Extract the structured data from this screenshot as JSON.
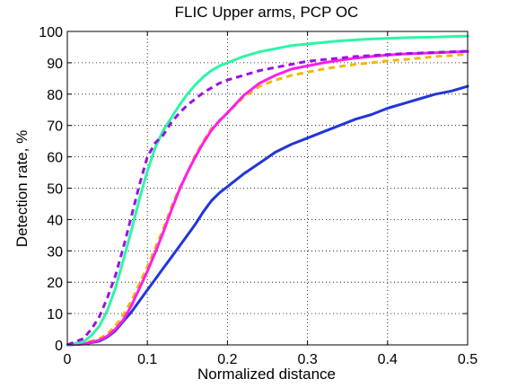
{
  "chart_data": {
    "type": "line",
    "title": "FLIC Upper arms, PCP OC",
    "xlabel": "Normalized distance",
    "ylabel": "Detection rate, %",
    "xlim": [
      0,
      0.5
    ],
    "ylim": [
      0,
      100
    ],
    "xticks": [
      "0",
      "0.1",
      "0.2",
      "0.3",
      "0.4",
      "0.5"
    ],
    "yticks": [
      "0",
      "10",
      "20",
      "30",
      "40",
      "50",
      "60",
      "70",
      "80",
      "90",
      "100"
    ],
    "grid": true,
    "series": [
      {
        "color": "#2236d8",
        "dash": "solid",
        "x": [
          0,
          0.02,
          0.04,
          0.05,
          0.06,
          0.07,
          0.08,
          0.09,
          0.1,
          0.11,
          0.12,
          0.13,
          0.14,
          0.15,
          0.16,
          0.17,
          0.18,
          0.19,
          0.2,
          0.22,
          0.24,
          0.26,
          0.28,
          0.3,
          0.32,
          0.34,
          0.36,
          0.38,
          0.4,
          0.42,
          0.44,
          0.46,
          0.48,
          0.5
        ],
        "y": [
          0,
          0.3,
          1.2,
          2.5,
          4.5,
          7.5,
          10.5,
          14,
          17.5,
          21,
          24.5,
          28,
          31.5,
          35,
          38.5,
          42.5,
          46,
          48.5,
          50.5,
          54.5,
          58,
          61.5,
          64,
          66,
          68,
          70,
          72,
          73.5,
          75.5,
          77,
          78.5,
          80,
          81,
          82.5
        ]
      },
      {
        "color": "#f2b800",
        "dash": "dashed",
        "x": [
          0,
          0.02,
          0.04,
          0.05,
          0.06,
          0.07,
          0.08,
          0.09,
          0.1,
          0.11,
          0.12,
          0.13,
          0.14,
          0.15,
          0.16,
          0.17,
          0.18,
          0.19,
          0.2,
          0.22,
          0.24,
          0.26,
          0.28,
          0.3,
          0.32,
          0.34,
          0.36,
          0.38,
          0.4,
          0.42,
          0.44,
          0.46,
          0.48,
          0.5
        ],
        "y": [
          0,
          0.5,
          2,
          3.5,
          6,
          9.5,
          14,
          19.5,
          25,
          31,
          37,
          44,
          50,
          55,
          60.5,
          65,
          69,
          71.5,
          74,
          79,
          82.5,
          84.5,
          86,
          87,
          88,
          88.8,
          89.5,
          90,
          90.6,
          91,
          91.5,
          92,
          92.3,
          92.8
        ]
      },
      {
        "color": "#ff1ee8",
        "dash": "solid",
        "x": [
          0,
          0.02,
          0.04,
          0.05,
          0.06,
          0.07,
          0.08,
          0.09,
          0.1,
          0.11,
          0.12,
          0.13,
          0.14,
          0.15,
          0.16,
          0.17,
          0.18,
          0.19,
          0.2,
          0.22,
          0.24,
          0.26,
          0.28,
          0.3,
          0.32,
          0.34,
          0.36,
          0.38,
          0.4,
          0.42,
          0.44,
          0.46,
          0.48,
          0.5
        ],
        "y": [
          0,
          0.3,
          1.5,
          2.8,
          5,
          8,
          12.5,
          18,
          23.5,
          29.5,
          36,
          43,
          49.5,
          55,
          60,
          64.5,
          68.5,
          71.5,
          74,
          79.5,
          83.5,
          86,
          88,
          89,
          90,
          90.8,
          91.5,
          92,
          92.5,
          92.8,
          93,
          93.2,
          93.4,
          93.6
        ]
      },
      {
        "color": "#2ef5a6",
        "dash": "solid",
        "x": [
          0,
          0.02,
          0.03,
          0.04,
          0.05,
          0.06,
          0.07,
          0.08,
          0.09,
          0.1,
          0.11,
          0.12,
          0.13,
          0.14,
          0.15,
          0.16,
          0.17,
          0.18,
          0.19,
          0.2,
          0.22,
          0.24,
          0.26,
          0.28,
          0.3,
          0.32,
          0.34,
          0.36,
          0.38,
          0.4,
          0.42,
          0.44,
          0.46,
          0.48,
          0.5
        ],
        "y": [
          0,
          1,
          3,
          6,
          11,
          18,
          27,
          36.5,
          46.5,
          55.5,
          63,
          68.5,
          72.5,
          76.5,
          80,
          83,
          85.5,
          87.5,
          89,
          90,
          92,
          93.5,
          94.5,
          95.5,
          96,
          96.5,
          97,
          97.3,
          97.6,
          97.8,
          98,
          98.1,
          98.2,
          98.4,
          98.5
        ]
      },
      {
        "color": "#9a10e8",
        "dash": "dashed",
        "x": [
          0,
          0.02,
          0.03,
          0.04,
          0.05,
          0.06,
          0.07,
          0.08,
          0.09,
          0.1,
          0.11,
          0.12,
          0.13,
          0.14,
          0.15,
          0.16,
          0.17,
          0.18,
          0.19,
          0.2,
          0.22,
          0.24,
          0.26,
          0.28,
          0.3,
          0.32,
          0.34,
          0.36,
          0.38,
          0.4,
          0.42,
          0.44,
          0.46,
          0.48,
          0.5
        ],
        "y": [
          0,
          2,
          5,
          9,
          15,
          22,
          31,
          41,
          51,
          60,
          64.5,
          67,
          71,
          74,
          76.5,
          78.5,
          80.5,
          82,
          83.5,
          84.5,
          86,
          87.5,
          88.5,
          89.5,
          90.5,
          91,
          91.5,
          92,
          92.3,
          92.6,
          92.9,
          93.1,
          93.3,
          93.5,
          93.7
        ]
      }
    ]
  }
}
